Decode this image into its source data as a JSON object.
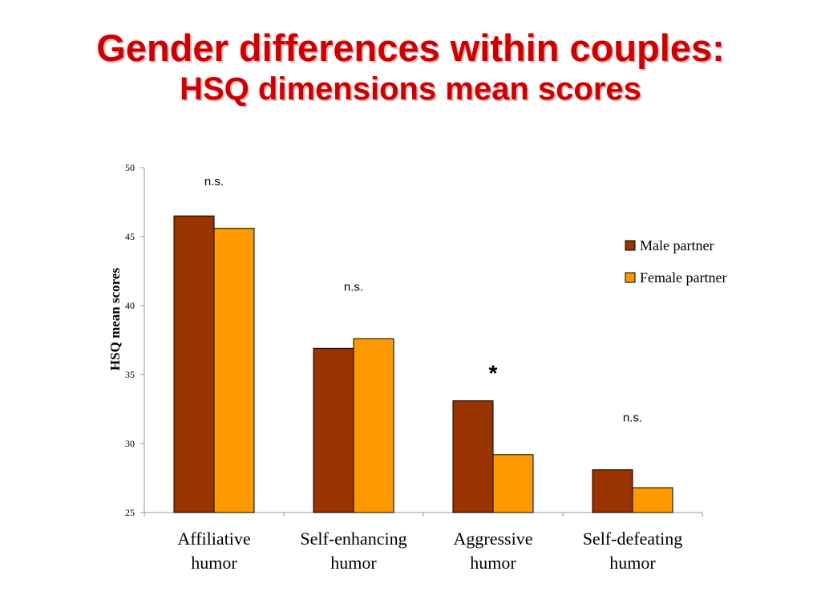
{
  "slide": {
    "title_line1": "Gender differences within couples:",
    "title_line2": "HSQ dimensions mean scores"
  },
  "chart_data": {
    "type": "bar",
    "ylabel": "HSQ mean scores",
    "ylim": [
      25,
      50
    ],
    "yticks": [
      25,
      30,
      35,
      40,
      45,
      50
    ],
    "grid": false,
    "legend_position": "right",
    "categories": [
      [
        "Affiliative",
        "humor"
      ],
      [
        "Self-enhancing",
        "humor"
      ],
      [
        "Aggressive",
        "humor"
      ],
      [
        "Self-defeating",
        "humor"
      ]
    ],
    "series": [
      {
        "name": "Male partner",
        "color": "#993300",
        "values": [
          46.5,
          36.9,
          33.1,
          28.1
        ]
      },
      {
        "name": "Female partner",
        "color": "#ff9900",
        "values": [
          45.6,
          37.6,
          29.2,
          26.8
        ]
      }
    ],
    "annotations": [
      "n.s.",
      "n.s.",
      "*",
      "n.s."
    ]
  }
}
